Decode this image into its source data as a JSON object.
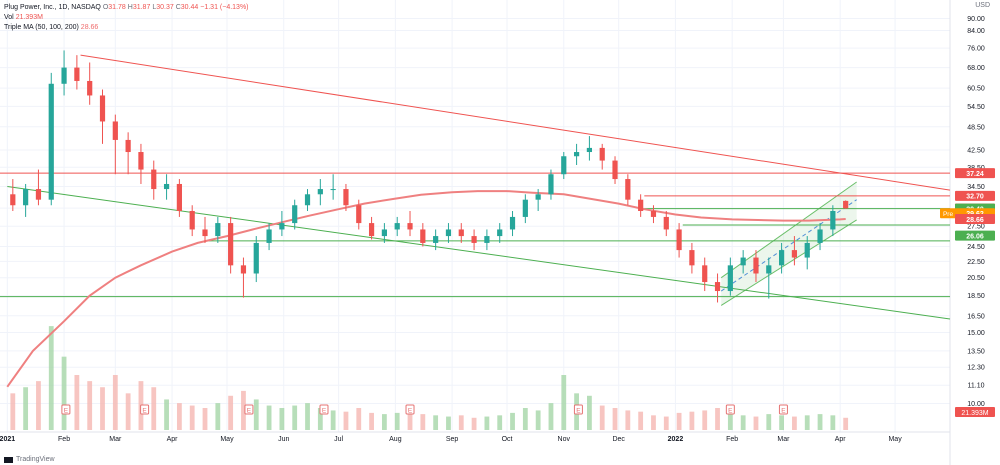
{
  "header": {
    "symbol": "Plug Power, Inc., 1D, NASDAQ",
    "o_label": "O",
    "o_value": "31.78",
    "h_label": "H",
    "h_value": "31.87",
    "l_label": "L",
    "l_value": "30.37",
    "c_label": "C",
    "c_value": "30.44",
    "change": "−1.31 (−4.13%)",
    "vol_label": "Vol",
    "vol_value": "21.393M",
    "ma_label": "Triple MA (50, 100, 200)",
    "ma_value": "28.66"
  },
  "currency": "USD",
  "footer": {
    "brand": "TradingView"
  },
  "colors": {
    "up": "#26a69a",
    "down": "#ef5350",
    "ma": "#ef8080",
    "channel": "#6abf69",
    "resistance": "#ef5350",
    "pre": "#ff9800",
    "vol_up": "#a5d6a7",
    "vol_down": "#f5b7b1"
  },
  "chart_data": {
    "type": "candlestick",
    "y_axis": {
      "scale": "log",
      "ylim": [
        8.5,
        100
      ]
    },
    "y_ticks": [
      "90.00",
      "84.00",
      "76.00",
      "68.00",
      "60.50",
      "54.50",
      "48.50",
      "42.50",
      "38.50",
      "34.50",
      "30.50",
      "27.50",
      "24.50",
      "22.50",
      "20.50",
      "18.50",
      "16.50",
      "15.00",
      "13.50",
      "12.30",
      "11.10",
      "10.00"
    ],
    "x_ticks": [
      "2021",
      "Feb",
      "Mar",
      "Apr",
      "May",
      "Jun",
      "Jul",
      "Aug",
      "Sep",
      "Oct",
      "Nov",
      "Dec",
      "2022",
      "Feb",
      "Mar",
      "Apr",
      "May"
    ],
    "price_tags": [
      {
        "label": "37.24",
        "value": 37.24,
        "bg": "#ef5350"
      },
      {
        "label": "32.70",
        "value": 32.7,
        "bg": "#ef5350"
      },
      {
        "label": "30.44",
        "value": 30.44,
        "bg": "#ef5350"
      },
      {
        "label": "30.40",
        "value": 30.4,
        "bg": "#4caf50"
      },
      {
        "label": "29.62",
        "value": 29.62,
        "bg": "#ff9800",
        "prefix": "Pre"
      },
      {
        "label": "28.66",
        "value": 28.66,
        "bg": "#ef5350"
      },
      {
        "label": "26.06",
        "value": 26.06,
        "bg": "#4caf50"
      }
    ],
    "horizontal_lines": [
      {
        "value": 37.24,
        "color": "#ef5350"
      },
      {
        "value": 32.7,
        "color": "#ef5350",
        "from_x": "2021-12-15"
      },
      {
        "value": 30.4,
        "color": "#4caf50",
        "from_x": "2021-12-15"
      },
      {
        "value": 27.7,
        "color": "#4caf50",
        "from_x": "2022-01-05"
      },
      {
        "value": 25.3,
        "color": "#4caf50",
        "from_x": "2021-04-20"
      },
      {
        "value": 18.4,
        "color": "#4caf50"
      }
    ],
    "trendlines": [
      {
        "from": [
          "2021-02-10",
          73
        ],
        "to": [
          "2022-05-31",
          33.8
        ],
        "color": "#ef5350"
      },
      {
        "from": [
          "2021-01-01",
          34.5
        ],
        "to": [
          "2022-05-31",
          16.2
        ],
        "color": "#4caf50"
      }
    ],
    "channel": {
      "lower": [
        [
          "2022-01-26",
          17.5
        ],
        [
          "2022-04-10",
          28.5
        ]
      ],
      "upper": [
        [
          "2022-01-26",
          20.5
        ],
        [
          "2022-04-10",
          35.4
        ]
      ],
      "mid": [
        [
          "2022-01-26",
          19.0
        ],
        [
          "2022-04-10",
          32.0
        ]
      ]
    },
    "ma_series": [
      [
        "2021-01-01",
        11.0
      ],
      [
        "2021-01-15",
        13.5
      ],
      [
        "2021-02-01",
        16.0
      ],
      [
        "2021-02-15",
        18.5
      ],
      [
        "2021-03-01",
        20.5
      ],
      [
        "2021-03-15",
        22.0
      ],
      [
        "2021-04-01",
        23.8
      ],
      [
        "2021-04-15",
        25.0
      ],
      [
        "2021-05-01",
        26.0
      ],
      [
        "2021-05-15",
        27.0
      ],
      [
        "2021-06-01",
        28.2
      ],
      [
        "2021-06-15",
        29.2
      ],
      [
        "2021-07-01",
        30.3
      ],
      [
        "2021-07-15",
        31.3
      ],
      [
        "2021-08-01",
        32.2
      ],
      [
        "2021-08-15",
        32.9
      ],
      [
        "2021-09-01",
        33.4
      ],
      [
        "2021-09-15",
        33.6
      ],
      [
        "2021-10-01",
        33.6
      ],
      [
        "2021-10-15",
        33.3
      ],
      [
        "2021-11-01",
        33.0
      ],
      [
        "2021-11-15",
        32.2
      ],
      [
        "2021-12-01",
        31.3
      ],
      [
        "2021-12-15",
        30.3
      ],
      [
        "2022-01-01",
        29.4
      ],
      [
        "2022-01-15",
        28.9
      ],
      [
        "2022-02-01",
        28.6
      ],
      [
        "2022-02-15",
        28.5
      ],
      [
        "2022-03-01",
        28.4
      ],
      [
        "2022-03-15",
        28.4
      ],
      [
        "2022-04-01",
        28.6
      ],
      [
        "2022-04-04",
        28.66
      ]
    ],
    "ohlc_weekly": [
      [
        "2021-01-04",
        33,
        36,
        30,
        31
      ],
      [
        "2021-01-11",
        31,
        35,
        29,
        34
      ],
      [
        "2021-01-18",
        34,
        38,
        31,
        32
      ],
      [
        "2021-01-25",
        32,
        66,
        31,
        62
      ],
      [
        "2021-02-01",
        62,
        75,
        58,
        68
      ],
      [
        "2021-02-08",
        68,
        73,
        60,
        63
      ],
      [
        "2021-02-15",
        63,
        70,
        55,
        58
      ],
      [
        "2021-02-22",
        58,
        60,
        44,
        50
      ],
      [
        "2021-03-01",
        50,
        52,
        37,
        45
      ],
      [
        "2021-03-08",
        45,
        47,
        37,
        42
      ],
      [
        "2021-03-15",
        42,
        44,
        35,
        38
      ],
      [
        "2021-03-22",
        38,
        40,
        32,
        34
      ],
      [
        "2021-03-29",
        34,
        37,
        32,
        35
      ],
      [
        "2021-04-05",
        35,
        36,
        29,
        30
      ],
      [
        "2021-04-12",
        30,
        31,
        26,
        27
      ],
      [
        "2021-04-19",
        27,
        29,
        25,
        26
      ],
      [
        "2021-04-26",
        26,
        29,
        25,
        28
      ],
      [
        "2021-05-03",
        28,
        29,
        21,
        22
      ],
      [
        "2021-05-10",
        22,
        23,
        18.3,
        21
      ],
      [
        "2021-05-17",
        21,
        26,
        20,
        25
      ],
      [
        "2021-05-24",
        25,
        28,
        24,
        27
      ],
      [
        "2021-05-31",
        27,
        30,
        26,
        28
      ],
      [
        "2021-06-07",
        28,
        32,
        27,
        31
      ],
      [
        "2021-06-14",
        31,
        34,
        30,
        33
      ],
      [
        "2021-06-21",
        33,
        36,
        31,
        34
      ],
      [
        "2021-06-28",
        34,
        37,
        32,
        34
      ],
      [
        "2021-07-05",
        34,
        35,
        30,
        31
      ],
      [
        "2021-07-12",
        31,
        32,
        27,
        28
      ],
      [
        "2021-07-19",
        28,
        29,
        25.5,
        26
      ],
      [
        "2021-07-26",
        26,
        28,
        25,
        27
      ],
      [
        "2021-08-02",
        27,
        29,
        26,
        28
      ],
      [
        "2021-08-09",
        28,
        30,
        26,
        27
      ],
      [
        "2021-08-16",
        27,
        28,
        24.5,
        25
      ],
      [
        "2021-08-23",
        25,
        27,
        24,
        26
      ],
      [
        "2021-08-30",
        26,
        28,
        25,
        27
      ],
      [
        "2021-09-06",
        27,
        28,
        25,
        26
      ],
      [
        "2021-09-13",
        26,
        27,
        24,
        25
      ],
      [
        "2021-09-20",
        25,
        27,
        24,
        26
      ],
      [
        "2021-09-27",
        26,
        28,
        25,
        27
      ],
      [
        "2021-10-04",
        27,
        30,
        26,
        29
      ],
      [
        "2021-10-11",
        29,
        33,
        28,
        32
      ],
      [
        "2021-10-18",
        32,
        34,
        30,
        33
      ],
      [
        "2021-10-25",
        33,
        38,
        32,
        37
      ],
      [
        "2021-11-01",
        37,
        42,
        36,
        41
      ],
      [
        "2021-11-08",
        41,
        44,
        39,
        42
      ],
      [
        "2021-11-15",
        42,
        46,
        40,
        43
      ],
      [
        "2021-11-22",
        43,
        44,
        38,
        40
      ],
      [
        "2021-11-29",
        40,
        41,
        35,
        36
      ],
      [
        "2021-12-06",
        36,
        37,
        31,
        32
      ],
      [
        "2021-12-13",
        32,
        33,
        29,
        30
      ],
      [
        "2021-12-20",
        30,
        31,
        28,
        29
      ],
      [
        "2021-12-27",
        29,
        30,
        26,
        27
      ],
      [
        "2022-01-03",
        27,
        28,
        23,
        24
      ],
      [
        "2022-01-10",
        24,
        25,
        21,
        22
      ],
      [
        "2022-01-17",
        22,
        23,
        19,
        20
      ],
      [
        "2022-01-24",
        20,
        21,
        17.8,
        19
      ],
      [
        "2022-01-31",
        19,
        23,
        18.5,
        22
      ],
      [
        "2022-02-07",
        22,
        24,
        21,
        23
      ],
      [
        "2022-02-14",
        23,
        24,
        20,
        21
      ],
      [
        "2022-02-21",
        21,
        23,
        18.2,
        22
      ],
      [
        "2022-02-28",
        22,
        25,
        21,
        24
      ],
      [
        "2022-03-07",
        24,
        26,
        22,
        23
      ],
      [
        "2022-03-14",
        23,
        26,
        21.5,
        25
      ],
      [
        "2022-03-21",
        25,
        28,
        24,
        27
      ],
      [
        "2022-03-28",
        27,
        31,
        26,
        30
      ],
      [
        "2022-04-04",
        31.78,
        31.87,
        30.37,
        30.44
      ]
    ],
    "volume_weekly": [
      [
        "2021-01-04",
        30
      ],
      [
        "2021-01-11",
        35
      ],
      [
        "2021-01-18",
        40
      ],
      [
        "2021-01-25",
        85
      ],
      [
        "2021-02-01",
        60
      ],
      [
        "2021-02-08",
        45
      ],
      [
        "2021-02-15",
        40
      ],
      [
        "2021-02-22",
        35
      ],
      [
        "2021-03-01",
        45
      ],
      [
        "2021-03-08",
        30
      ],
      [
        "2021-03-15",
        40
      ],
      [
        "2021-03-22",
        35
      ],
      [
        "2021-03-29",
        25
      ],
      [
        "2021-04-05",
        22
      ],
      [
        "2021-04-12",
        20
      ],
      [
        "2021-04-19",
        18
      ],
      [
        "2021-04-26",
        22
      ],
      [
        "2021-05-03",
        28
      ],
      [
        "2021-05-10",
        32
      ],
      [
        "2021-05-17",
        25
      ],
      [
        "2021-05-24",
        20
      ],
      [
        "2021-05-31",
        18
      ],
      [
        "2021-06-07",
        20
      ],
      [
        "2021-06-14",
        22
      ],
      [
        "2021-06-21",
        18
      ],
      [
        "2021-06-28",
        16
      ],
      [
        "2021-07-05",
        15
      ],
      [
        "2021-07-12",
        18
      ],
      [
        "2021-07-19",
        14
      ],
      [
        "2021-07-26",
        13
      ],
      [
        "2021-08-02",
        14
      ],
      [
        "2021-08-09",
        20
      ],
      [
        "2021-08-16",
        13
      ],
      [
        "2021-08-23",
        12
      ],
      [
        "2021-08-30",
        11
      ],
      [
        "2021-09-06",
        12
      ],
      [
        "2021-09-13",
        10
      ],
      [
        "2021-09-20",
        11
      ],
      [
        "2021-09-27",
        12
      ],
      [
        "2021-10-04",
        14
      ],
      [
        "2021-10-11",
        18
      ],
      [
        "2021-10-18",
        16
      ],
      [
        "2021-10-25",
        22
      ],
      [
        "2021-11-01",
        45
      ],
      [
        "2021-11-08",
        30
      ],
      [
        "2021-11-15",
        28
      ],
      [
        "2021-11-22",
        20
      ],
      [
        "2021-11-29",
        18
      ],
      [
        "2021-12-06",
        16
      ],
      [
        "2021-12-13",
        15
      ],
      [
        "2021-12-20",
        12
      ],
      [
        "2021-12-27",
        11
      ],
      [
        "2022-01-03",
        14
      ],
      [
        "2022-01-10",
        15
      ],
      [
        "2022-01-17",
        16
      ],
      [
        "2022-01-24",
        18
      ],
      [
        "2022-01-31",
        14
      ],
      [
        "2022-02-07",
        12
      ],
      [
        "2022-02-14",
        11
      ],
      [
        "2022-02-21",
        13
      ],
      [
        "2022-02-28",
        12
      ],
      [
        "2022-03-07",
        11
      ],
      [
        "2022-03-14",
        12
      ],
      [
        "2022-03-21",
        13
      ],
      [
        "2022-03-28",
        12
      ],
      [
        "2022-04-04",
        10
      ]
    ],
    "earnings_markers": [
      "2021-02-02",
      "2021-03-17",
      "2021-05-13",
      "2021-06-23",
      "2021-08-09",
      "2021-11-09",
      "2022-01-31",
      "2022-03-01"
    ],
    "current_volume": "21.393M"
  }
}
